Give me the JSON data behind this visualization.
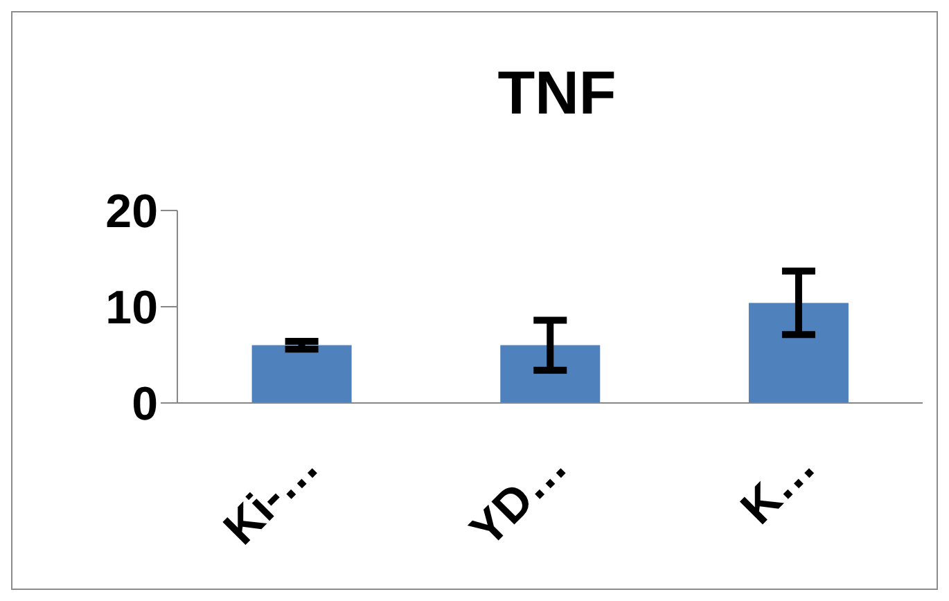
{
  "chart_data": {
    "type": "bar",
    "title": "TNF",
    "categories": [
      "Ki-…",
      "YD…",
      "K…"
    ],
    "values": [
      6,
      6,
      10.4
    ],
    "errors": [
      0.4,
      2.6,
      3.3
    ],
    "color": "#4f81bd",
    "ylim": [
      0,
      20
    ],
    "yticks": [
      0,
      10,
      20
    ],
    "grid": false,
    "legend": false
  }
}
